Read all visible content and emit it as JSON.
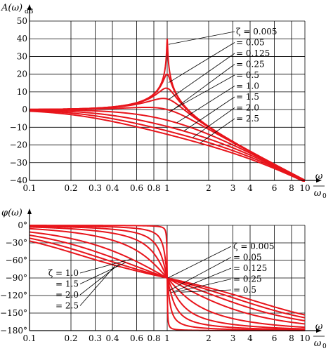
{
  "chart_data": [
    {
      "type": "line",
      "title": "",
      "ylabel": "A(ω)",
      "ylabel_sub": "dB",
      "xlabel": "ω / ω0",
      "xlabel_num": "ω",
      "xlabel_den": "ω",
      "xlabel_den_sub": "0",
      "x_scale": "log",
      "xlim": [
        0.1,
        10
      ],
      "ylim": [
        -40,
        50
      ],
      "grid": true,
      "x_ticks": [
        "0.1",
        "0.2",
        "0.3",
        "0.4",
        "0.6",
        "0.8",
        "1",
        "2",
        "3",
        "4",
        "6",
        "8",
        "10"
      ],
      "y_ticks": [
        "50",
        "40",
        "30",
        "20",
        "10",
        "0",
        "−10",
        "−20",
        "−30",
        "−40"
      ],
      "legend_title": "ζ",
      "series": [
        {
          "name": "ζ = 0.005",
          "zeta": 0.005
        },
        {
          "name": "= 0.05",
          "zeta": 0.05
        },
        {
          "name": "= 0.125",
          "zeta": 0.125
        },
        {
          "name": "= 0.25",
          "zeta": 0.25
        },
        {
          "name": "= 0.5",
          "zeta": 0.5
        },
        {
          "name": "= 1.0",
          "zeta": 1.0
        },
        {
          "name": "= 1.5",
          "zeta": 1.5
        },
        {
          "name": "= 2.0",
          "zeta": 2.0
        },
        {
          "name": "= 2.5",
          "zeta": 2.5
        }
      ],
      "annotations": [
        "ζ = 0.005",
        "= 0.05",
        "= 0.125",
        "= 0.25",
        "= 0.5",
        "= 1.0",
        "= 1.5",
        "= 2.0",
        "= 2.5"
      ]
    },
    {
      "type": "line",
      "title": "",
      "ylabel": "φ(ω)",
      "xlabel": "ω / ω0",
      "xlabel_num": "ω",
      "xlabel_den": "ω",
      "xlabel_den_sub": "0",
      "x_scale": "log",
      "xlim": [
        0.1,
        10
      ],
      "ylim": [
        -180,
        0
      ],
      "grid": true,
      "x_ticks": [
        "0.1",
        "0.2",
        "0.3",
        "0.4",
        "0.6",
        "0.8",
        "1",
        "2",
        "3",
        "4",
        "6",
        "8",
        "10"
      ],
      "y_ticks": [
        "0°",
        "−30°",
        "−60°",
        "−90°",
        "−120°",
        "−150°",
        "−180°"
      ],
      "series": [
        {
          "name": "ζ = 0.005",
          "zeta": 0.005
        },
        {
          "name": "= 0.05",
          "zeta": 0.05
        },
        {
          "name": "= 0.125",
          "zeta": 0.125
        },
        {
          "name": "= 0.25",
          "zeta": 0.25
        },
        {
          "name": "= 0.5",
          "zeta": 0.5
        },
        {
          "name": "ζ = 1.0",
          "zeta": 1.0
        },
        {
          "name": "= 1.5",
          "zeta": 1.5
        },
        {
          "name": "= 2.0",
          "zeta": 2.0
        },
        {
          "name": "= 2.5",
          "zeta": 2.5
        }
      ],
      "annotations_right": [
        "ζ = 0.005",
        "= 0.05",
        "= 0.125",
        "= 0.25",
        "= 0.5"
      ],
      "annotations_left": [
        "ζ = 1.0",
        "= 1.5",
        "= 2.0",
        "= 2.5"
      ]
    }
  ],
  "colors": {
    "curve": "#e8141b",
    "grid": "#000000"
  }
}
